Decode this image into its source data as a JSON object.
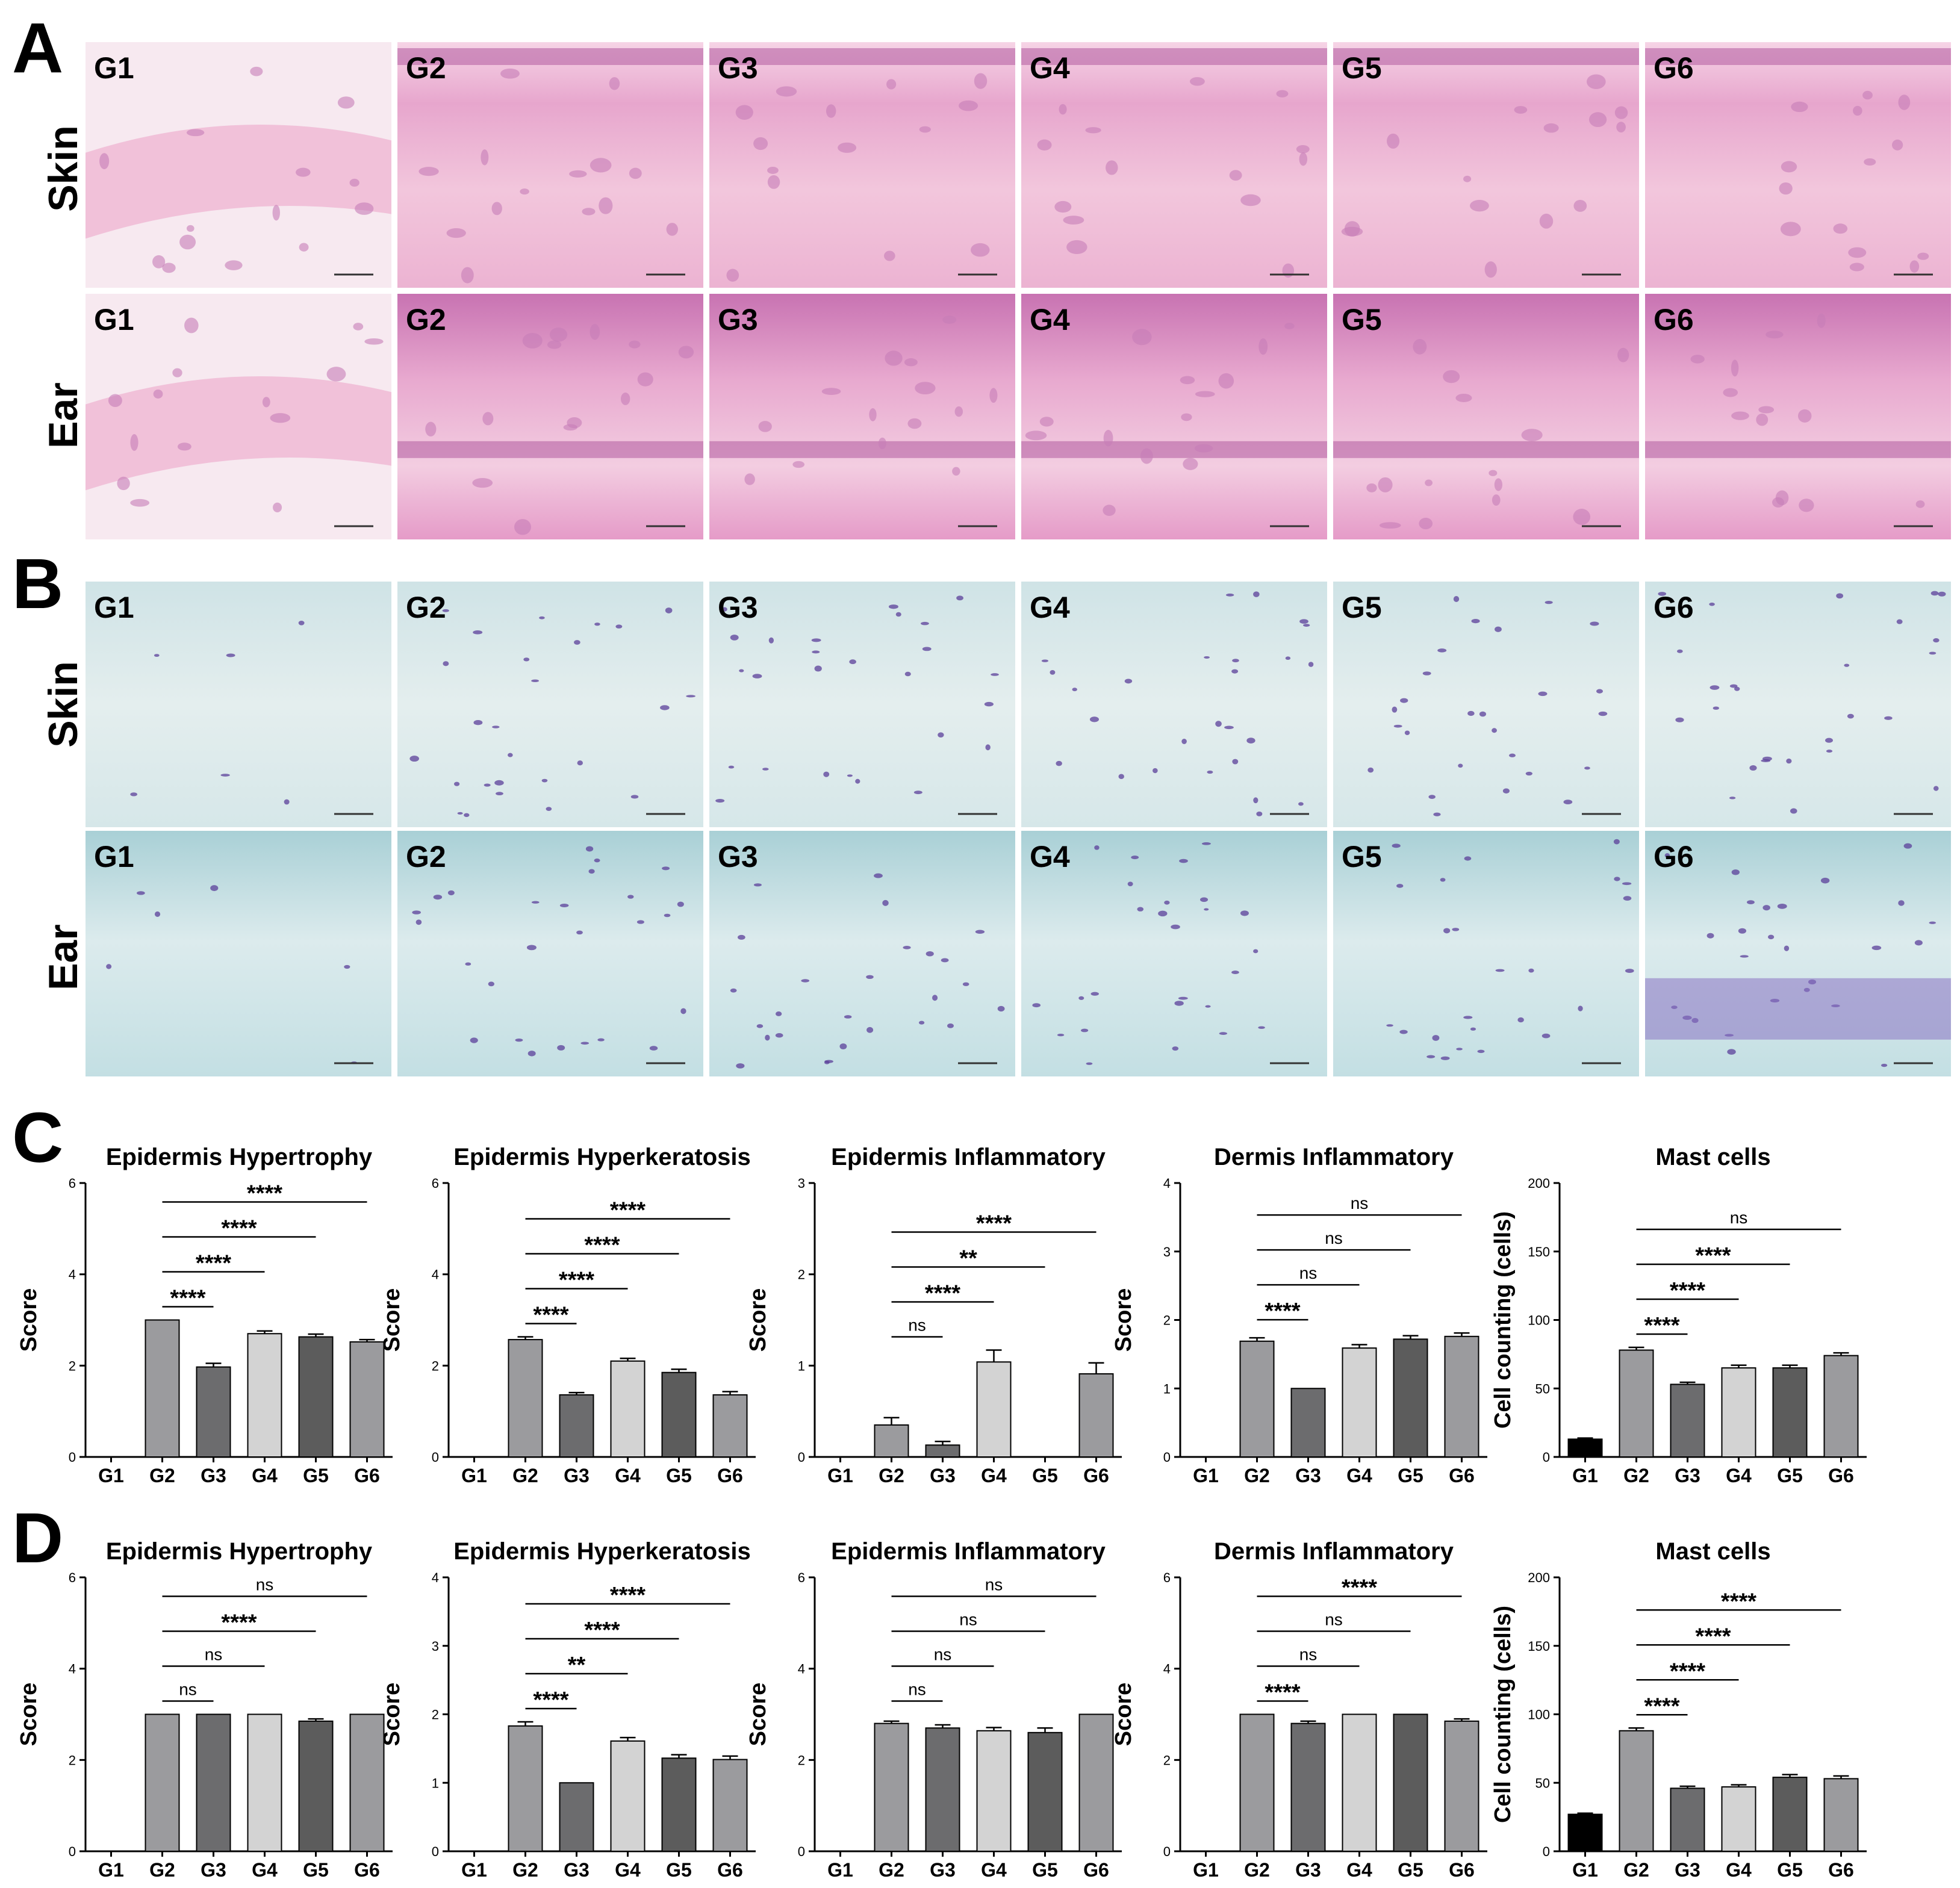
{
  "panel_letters": [
    "A",
    "B",
    "C",
    "D"
  ],
  "row_labels": {
    "skin": "Skin",
    "ear": "Ear"
  },
  "groups": [
    "G1",
    "G2",
    "G3",
    "G4",
    "G5",
    "G6"
  ],
  "micrograph_panels": {
    "A": {
      "stain": "H&E",
      "rows": [
        "skin",
        "ear"
      ]
    },
    "B": {
      "stain": "toluidine blue",
      "rows": [
        "skin",
        "ear"
      ]
    }
  },
  "chart_data": [
    {
      "id": "C1",
      "panel": "C",
      "type": "bar",
      "title": "Epidermis Hypertrophy",
      "ylabel": "Score",
      "ylim": [
        0,
        6
      ],
      "yticks": [
        0,
        2,
        4,
        6
      ],
      "categories": [
        "G1",
        "G2",
        "G3",
        "G4",
        "G5",
        "G6"
      ],
      "values": [
        0,
        3.0,
        1.97,
        2.7,
        2.63,
        2.52
      ],
      "errors": [
        0,
        0,
        0.08,
        0.06,
        0.06,
        0.05
      ],
      "significance": [
        {
          "from": "G2",
          "to": "G3",
          "label": "****"
        },
        {
          "from": "G2",
          "to": "G4",
          "label": "****"
        },
        {
          "from": "G2",
          "to": "G5",
          "label": "****"
        },
        {
          "from": "G2",
          "to": "G6",
          "label": "****"
        }
      ]
    },
    {
      "id": "C2",
      "panel": "C",
      "type": "bar",
      "title": "Epidermis Hyperkeratosis",
      "ylabel": "Score",
      "ylim": [
        0,
        6
      ],
      "yticks": [
        0,
        2,
        4,
        6
      ],
      "categories": [
        "G1",
        "G2",
        "G3",
        "G4",
        "G5",
        "G6"
      ],
      "values": [
        0,
        2.57,
        1.36,
        2.1,
        1.85,
        1.36
      ],
      "errors": [
        0,
        0.06,
        0.05,
        0.06,
        0.07,
        0.07
      ],
      "significance": [
        {
          "from": "G2",
          "to": "G3",
          "label": "****"
        },
        {
          "from": "G2",
          "to": "G4",
          "label": "****"
        },
        {
          "from": "G2",
          "to": "G5",
          "label": "****"
        },
        {
          "from": "G2",
          "to": "G6",
          "label": "****"
        }
      ]
    },
    {
      "id": "C3",
      "panel": "C",
      "type": "bar",
      "title": "Epidermis Inflammatory",
      "ylabel": "Score",
      "ylim": [
        0,
        3
      ],
      "yticks": [
        0,
        1,
        2,
        3
      ],
      "categories": [
        "G1",
        "G2",
        "G3",
        "G4",
        "G5",
        "G6"
      ],
      "values": [
        0,
        0.35,
        0.13,
        1.04,
        0,
        0.91
      ],
      "errors": [
        0,
        0.08,
        0.04,
        0.13,
        0,
        0.12
      ],
      "significance": [
        {
          "from": "G2",
          "to": "G3",
          "label": "ns"
        },
        {
          "from": "G2",
          "to": "G4",
          "label": "****"
        },
        {
          "from": "G2",
          "to": "G5",
          "label": "**"
        },
        {
          "from": "G2",
          "to": "G6",
          "label": "****"
        }
      ]
    },
    {
      "id": "C4",
      "panel": "C",
      "type": "bar",
      "title": "Dermis Inflammatory",
      "ylabel": "Score",
      "ylim": [
        0,
        4
      ],
      "yticks": [
        0,
        1,
        2,
        3,
        4
      ],
      "categories": [
        "G1",
        "G2",
        "G3",
        "G4",
        "G5",
        "G6"
      ],
      "values": [
        0,
        1.69,
        1.0,
        1.59,
        1.72,
        1.76
      ],
      "errors": [
        0,
        0.05,
        0,
        0.05,
        0.05,
        0.05
      ],
      "significance": [
        {
          "from": "G2",
          "to": "G3",
          "label": "****"
        },
        {
          "from": "G2",
          "to": "G4",
          "label": "ns"
        },
        {
          "from": "G2",
          "to": "G5",
          "label": "ns"
        },
        {
          "from": "G2",
          "to": "G6",
          "label": "ns"
        }
      ]
    },
    {
      "id": "C5",
      "panel": "C",
      "type": "bar",
      "title": "Mast cells",
      "ylabel": "Cell counting (cells)",
      "ylim": [
        0,
        200
      ],
      "yticks": [
        0,
        50,
        100,
        150,
        200
      ],
      "categories": [
        "G1",
        "G2",
        "G3",
        "G4",
        "G5",
        "G6"
      ],
      "values": [
        13,
        78,
        53,
        65,
        65,
        74
      ],
      "errors": [
        0.8,
        2,
        1.5,
        2,
        2,
        2
      ],
      "significance": [
        {
          "from": "G2",
          "to": "G3",
          "label": "****"
        },
        {
          "from": "G2",
          "to": "G4",
          "label": "****"
        },
        {
          "from": "G2",
          "to": "G5",
          "label": "****"
        },
        {
          "from": "G2",
          "to": "G6",
          "label": "ns"
        }
      ]
    },
    {
      "id": "D1",
      "panel": "D",
      "type": "bar",
      "title": "Epidermis Hypertrophy",
      "ylabel": "Score",
      "ylim": [
        0,
        6
      ],
      "yticks": [
        0,
        2,
        4,
        6
      ],
      "categories": [
        "G1",
        "G2",
        "G3",
        "G4",
        "G5",
        "G6"
      ],
      "values": [
        0,
        3.0,
        3.0,
        3.0,
        2.85,
        3.0
      ],
      "errors": [
        0,
        0,
        0,
        0,
        0.05,
        0
      ],
      "significance": [
        {
          "from": "G2",
          "to": "G3",
          "label": "ns"
        },
        {
          "from": "G2",
          "to": "G4",
          "label": "ns"
        },
        {
          "from": "G2",
          "to": "G5",
          "label": "****"
        },
        {
          "from": "G2",
          "to": "G6",
          "label": "ns"
        }
      ]
    },
    {
      "id": "D2",
      "panel": "D",
      "type": "bar",
      "title": "Epidermis Hyperkeratosis",
      "ylabel": "Score",
      "ylim": [
        0,
        4
      ],
      "yticks": [
        0,
        1,
        2,
        3,
        4
      ],
      "categories": [
        "G1",
        "G2",
        "G3",
        "G4",
        "G5",
        "G6"
      ],
      "values": [
        0,
        1.83,
        1.0,
        1.61,
        1.36,
        1.34
      ],
      "errors": [
        0,
        0.06,
        0,
        0.05,
        0.05,
        0.05
      ],
      "significance": [
        {
          "from": "G2",
          "to": "G3",
          "label": "****"
        },
        {
          "from": "G2",
          "to": "G4",
          "label": "**"
        },
        {
          "from": "G2",
          "to": "G5",
          "label": "****"
        },
        {
          "from": "G2",
          "to": "G6",
          "label": "****"
        }
      ]
    },
    {
      "id": "D3",
      "panel": "D",
      "type": "bar",
      "title": "Epidermis Inflammatory",
      "ylabel": "Score",
      "ylim": [
        0,
        6
      ],
      "yticks": [
        0,
        2,
        4,
        6
      ],
      "categories": [
        "G1",
        "G2",
        "G3",
        "G4",
        "G5",
        "G6"
      ],
      "values": [
        0,
        2.8,
        2.7,
        2.64,
        2.6,
        3.0
      ],
      "errors": [
        0,
        0.05,
        0.07,
        0.07,
        0.1,
        0
      ],
      "significance": [
        {
          "from": "G2",
          "to": "G3",
          "label": "ns"
        },
        {
          "from": "G2",
          "to": "G4",
          "label": "ns"
        },
        {
          "from": "G2",
          "to": "G5",
          "label": "ns"
        },
        {
          "from": "G2",
          "to": "G6",
          "label": "ns"
        }
      ]
    },
    {
      "id": "D4",
      "panel": "D",
      "type": "bar",
      "title": "Dermis Inflammatory",
      "ylabel": "Score",
      "ylim": [
        0,
        6
      ],
      "yticks": [
        0,
        2,
        4,
        6
      ],
      "categories": [
        "G1",
        "G2",
        "G3",
        "G4",
        "G5",
        "G6"
      ],
      "values": [
        0,
        3.0,
        2.8,
        3.0,
        3.0,
        2.85
      ],
      "errors": [
        0,
        0,
        0.05,
        0,
        0,
        0.05
      ],
      "significance": [
        {
          "from": "G2",
          "to": "G3",
          "label": "****"
        },
        {
          "from": "G2",
          "to": "G4",
          "label": "ns"
        },
        {
          "from": "G2",
          "to": "G5",
          "label": "ns"
        },
        {
          "from": "G2",
          "to": "G6",
          "label": "****"
        }
      ]
    },
    {
      "id": "D5",
      "panel": "D",
      "type": "bar",
      "title": "Mast cells",
      "ylabel": "Cell counting (cells)",
      "ylim": [
        0,
        200
      ],
      "yticks": [
        0,
        50,
        100,
        150,
        200
      ],
      "categories": [
        "G1",
        "G2",
        "G3",
        "G4",
        "G5",
        "G6"
      ],
      "values": [
        27,
        88,
        46,
        47,
        54,
        53
      ],
      "errors": [
        0.8,
        2,
        1.5,
        1.5,
        2,
        2
      ],
      "significance": [
        {
          "from": "G2",
          "to": "G3",
          "label": "****"
        },
        {
          "from": "G2",
          "to": "G4",
          "label": "****"
        },
        {
          "from": "G2",
          "to": "G5",
          "label": "****"
        },
        {
          "from": "G2",
          "to": "G6",
          "label": "****"
        }
      ]
    }
  ],
  "bar_colors": [
    "#000000",
    "#9b9b9e",
    "#6c6c6e",
    "#d3d3d3",
    "#5c5c5c",
    "#9b9b9e"
  ]
}
